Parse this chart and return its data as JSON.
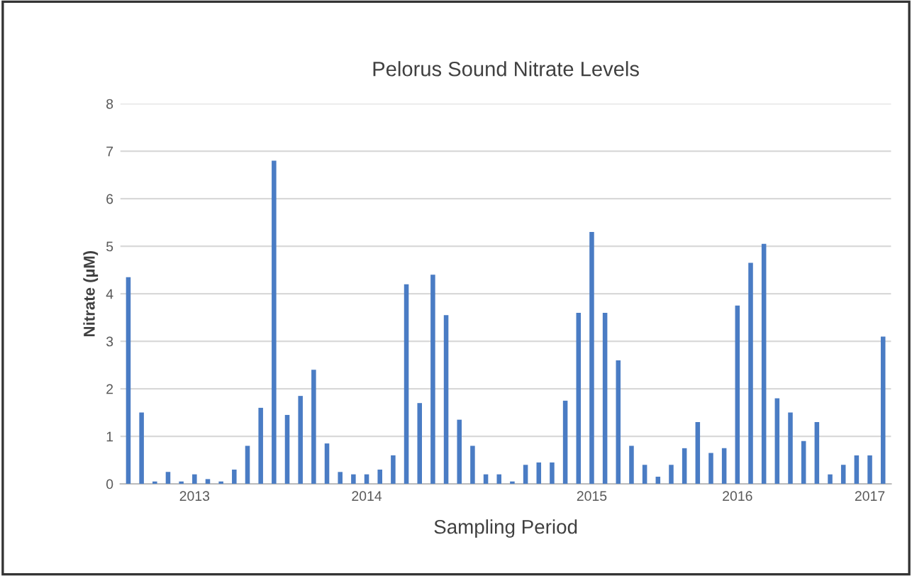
{
  "chart_data": {
    "type": "bar",
    "title": "Pelorus Sound Nitrate Levels",
    "xlabel": "Sampling Period",
    "ylabel": "Nitrate (µM)",
    "categories": [
      null,
      null,
      null,
      null,
      null,
      "2013",
      null,
      null,
      null,
      null,
      null,
      null,
      null,
      null,
      null,
      null,
      null,
      null,
      "2014",
      null,
      null,
      null,
      null,
      null,
      null,
      null,
      null,
      null,
      null,
      null,
      null,
      null,
      null,
      null,
      null,
      "2015",
      null,
      null,
      null,
      null,
      null,
      null,
      null,
      null,
      null,
      null,
      "2016",
      null,
      null,
      null,
      null,
      null,
      null,
      null,
      null,
      null,
      "2017",
      null
    ],
    "values": [
      4.35,
      1.5,
      0.05,
      0.25,
      0.05,
      0.2,
      0.1,
      0.05,
      0.3,
      0.8,
      1.6,
      6.8,
      1.45,
      1.85,
      2.4,
      0.85,
      0.25,
      0.2,
      0.2,
      0.3,
      0.6,
      4.2,
      1.7,
      4.4,
      3.55,
      1.35,
      0.8,
      0.2,
      0.2,
      0.05,
      0.4,
      0.45,
      0.45,
      1.75,
      3.6,
      5.3,
      3.6,
      2.6,
      0.8,
      0.4,
      0.15,
      0.4,
      0.75,
      1.3,
      0.65,
      0.75,
      3.75,
      4.65,
      5.05,
      1.8,
      1.5,
      0.9,
      1.3,
      0.2,
      0.4,
      0.6,
      0.6,
      3.1
    ],
    "color": "#4a7cc4",
    "ylim": [
      0,
      8
    ],
    "yticks": [
      0,
      1,
      2,
      3,
      4,
      5,
      6,
      7,
      8
    ],
    "grid": "y",
    "legend": false
  }
}
